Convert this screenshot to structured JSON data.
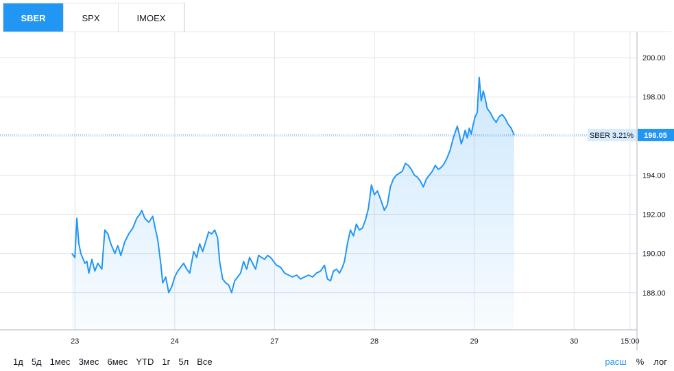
{
  "tabs": [
    {
      "label": "SBER",
      "active": true
    },
    {
      "label": "SPX",
      "active": false
    },
    {
      "label": "IMOEX",
      "active": false
    }
  ],
  "ranges": [
    "1д",
    "5д",
    "1мес",
    "3мес",
    "6мес",
    "YTD",
    "1г",
    "5л",
    "Все"
  ],
  "scale_buttons": [
    {
      "label": "расш",
      "active": true
    },
    {
      "label": "%",
      "active": false
    },
    {
      "label": "лог",
      "active": false
    }
  ],
  "colors": {
    "line": "#2196f3",
    "active_tab": "#2196f3",
    "grid": "#e0e3eb"
  },
  "chart_data": {
    "type": "area",
    "title": "",
    "xlabel": "",
    "ylabel": "",
    "ylim": [
      186.1,
      201.3
    ],
    "yticks": [
      "188.00",
      "190.00",
      "192.00",
      "194.00",
      "196.00",
      "198.00",
      "200.00"
    ],
    "xticks": [
      {
        "label": "23",
        "x": 0.3
      },
      {
        "label": "24",
        "x": 1.3
      },
      {
        "label": "27",
        "x": 2.3
      },
      {
        "label": "28",
        "x": 3.3
      },
      {
        "label": "29",
        "x": 4.3
      },
      {
        "label": "30",
        "x": 5.3
      },
      {
        "label": "15:00",
        "x": 5.86
      }
    ],
    "last_value": {
      "label": "SBER 3.21%",
      "value": "196.05",
      "y": 196.05
    },
    "grid": true,
    "series": [
      {
        "points": [
          [
            0.27,
            190.0
          ],
          [
            0.3,
            189.8
          ],
          [
            0.32,
            191.8
          ],
          [
            0.34,
            190.5
          ],
          [
            0.36,
            190.0
          ],
          [
            0.4,
            189.5
          ],
          [
            0.42,
            189.6
          ],
          [
            0.44,
            189.0
          ],
          [
            0.47,
            189.7
          ],
          [
            0.5,
            189.1
          ],
          [
            0.53,
            189.5
          ],
          [
            0.57,
            189.2
          ],
          [
            0.6,
            191.2
          ],
          [
            0.63,
            191.0
          ],
          [
            0.66,
            190.5
          ],
          [
            0.7,
            190.0
          ],
          [
            0.73,
            190.4
          ],
          [
            0.76,
            189.9
          ],
          [
            0.8,
            190.6
          ],
          [
            0.84,
            191.0
          ],
          [
            0.88,
            191.3
          ],
          [
            0.92,
            191.8
          ],
          [
            0.95,
            192.0
          ],
          [
            0.97,
            192.2
          ],
          [
            1.0,
            191.8
          ],
          [
            1.04,
            191.6
          ],
          [
            1.08,
            191.9
          ],
          [
            1.1,
            191.4
          ],
          [
            1.13,
            190.7
          ],
          [
            1.16,
            189.5
          ],
          [
            1.18,
            188.5
          ],
          [
            1.21,
            188.8
          ],
          [
            1.24,
            188.0
          ],
          [
            1.27,
            188.3
          ],
          [
            1.3,
            188.8
          ],
          [
            1.33,
            189.1
          ],
          [
            1.36,
            189.3
          ],
          [
            1.39,
            189.5
          ],
          [
            1.42,
            189.2
          ],
          [
            1.45,
            189.0
          ],
          [
            1.49,
            190.1
          ],
          [
            1.52,
            189.8
          ],
          [
            1.55,
            190.5
          ],
          [
            1.58,
            190.1
          ],
          [
            1.61,
            190.6
          ],
          [
            1.64,
            191.1
          ],
          [
            1.67,
            191.0
          ],
          [
            1.7,
            191.2
          ],
          [
            1.73,
            190.8
          ],
          [
            1.75,
            189.6
          ],
          [
            1.78,
            188.7
          ],
          [
            1.81,
            188.5
          ],
          [
            1.84,
            188.4
          ],
          [
            1.87,
            188.0
          ],
          [
            1.9,
            188.6
          ],
          [
            1.93,
            188.8
          ],
          [
            1.96,
            189.0
          ],
          [
            1.99,
            189.6
          ],
          [
            2.02,
            189.2
          ],
          [
            2.05,
            189.8
          ],
          [
            2.08,
            189.5
          ],
          [
            2.11,
            189.2
          ],
          [
            2.14,
            189.9
          ],
          [
            2.17,
            189.8
          ],
          [
            2.2,
            189.7
          ],
          [
            2.23,
            189.9
          ],
          [
            2.26,
            189.8
          ],
          [
            2.29,
            189.6
          ],
          [
            2.32,
            189.4
          ],
          [
            2.36,
            189.3
          ],
          [
            2.4,
            189.0
          ],
          [
            2.44,
            188.9
          ],
          [
            2.48,
            188.8
          ],
          [
            2.52,
            188.9
          ],
          [
            2.56,
            188.7
          ],
          [
            2.6,
            188.8
          ],
          [
            2.64,
            188.9
          ],
          [
            2.68,
            188.8
          ],
          [
            2.72,
            189.0
          ],
          [
            2.76,
            189.1
          ],
          [
            2.8,
            189.4
          ],
          [
            2.83,
            188.7
          ],
          [
            2.86,
            188.6
          ],
          [
            2.89,
            189.1
          ],
          [
            2.92,
            189.2
          ],
          [
            2.95,
            189.0
          ],
          [
            2.98,
            189.3
          ],
          [
            3.0,
            189.6
          ],
          [
            3.03,
            190.5
          ],
          [
            3.06,
            191.2
          ],
          [
            3.09,
            190.9
          ],
          [
            3.12,
            191.5
          ],
          [
            3.15,
            191.2
          ],
          [
            3.18,
            191.3
          ],
          [
            3.21,
            191.7
          ],
          [
            3.24,
            192.3
          ],
          [
            3.27,
            193.5
          ],
          [
            3.3,
            193.0
          ],
          [
            3.33,
            193.2
          ],
          [
            3.36,
            192.8
          ],
          [
            3.4,
            192.2
          ],
          [
            3.43,
            192.5
          ],
          [
            3.46,
            193.4
          ],
          [
            3.49,
            193.8
          ],
          [
            3.52,
            194.0
          ],
          [
            3.55,
            194.1
          ],
          [
            3.58,
            194.2
          ],
          [
            3.61,
            194.6
          ],
          [
            3.64,
            194.5
          ],
          [
            3.67,
            194.3
          ],
          [
            3.7,
            194.0
          ],
          [
            3.73,
            193.9
          ],
          [
            3.76,
            193.7
          ],
          [
            3.79,
            193.4
          ],
          [
            3.82,
            193.8
          ],
          [
            3.85,
            194.0
          ],
          [
            3.88,
            194.2
          ],
          [
            3.91,
            194.5
          ],
          [
            3.94,
            194.3
          ],
          [
            3.97,
            194.4
          ],
          [
            4.0,
            194.6
          ],
          [
            4.03,
            194.9
          ],
          [
            4.06,
            195.3
          ],
          [
            4.09,
            195.9
          ],
          [
            4.11,
            196.2
          ],
          [
            4.13,
            196.5
          ],
          [
            4.15,
            196.1
          ],
          [
            4.17,
            195.6
          ],
          [
            4.19,
            195.9
          ],
          [
            4.21,
            196.3
          ],
          [
            4.23,
            195.9
          ],
          [
            4.25,
            196.4
          ],
          [
            4.27,
            196.1
          ],
          [
            4.29,
            196.6
          ],
          [
            4.31,
            197.0
          ],
          [
            4.33,
            197.2
          ],
          [
            4.35,
            199.0
          ],
          [
            4.37,
            197.8
          ],
          [
            4.39,
            198.3
          ],
          [
            4.41,
            197.9
          ],
          [
            4.43,
            197.4
          ],
          [
            4.46,
            197.2
          ],
          [
            4.49,
            196.9
          ],
          [
            4.52,
            196.7
          ],
          [
            4.55,
            197.0
          ],
          [
            4.58,
            197.1
          ],
          [
            4.61,
            196.9
          ],
          [
            4.64,
            196.6
          ],
          [
            4.67,
            196.4
          ],
          [
            4.7,
            196.05
          ]
        ]
      }
    ]
  }
}
